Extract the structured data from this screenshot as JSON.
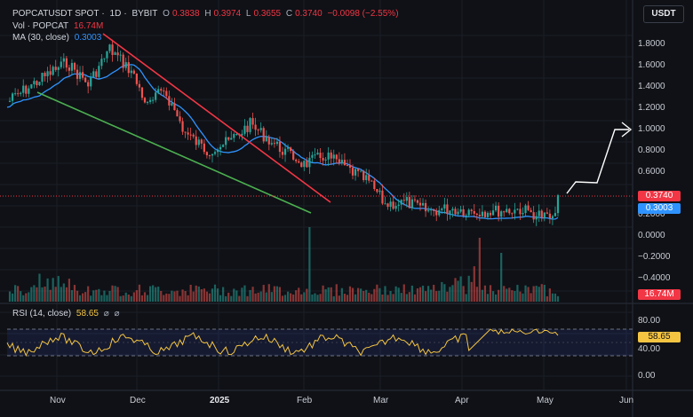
{
  "header": {
    "symbol": "POPCATUSDT SPOT",
    "interval": "1D",
    "exchange": "BYBIT",
    "ohlc": {
      "o_label": "O",
      "o": "0.3838",
      "h_label": "H",
      "h": "0.3974",
      "l_label": "L",
      "l": "0.3655",
      "c_label": "C",
      "c": "0.3740",
      "change": "−0.0098 (−2.55%)"
    },
    "vol_label": "Vol · POPCAT",
    "vol_value": "16.74M",
    "ma_label": "MA (30, close)",
    "ma_value": "0.3003"
  },
  "currency_button": "USDT",
  "price_axis": [
    "1.8000",
    "1.6000",
    "1.4000",
    "1.2000",
    "1.0000",
    "0.8000",
    "0.6000",
    "0.2000",
    "0.0000",
    "−0.2000",
    "−0.4000"
  ],
  "price_tags": {
    "last": "0.3740",
    "ma": "0.3003",
    "volume": "16.74M",
    "rsi": "58.65"
  },
  "rsi": {
    "label": "RSI (14, close)",
    "value": "58.65",
    "axis": [
      "80.00",
      "40.00",
      "0.00"
    ],
    "upper": 70,
    "lower": 30
  },
  "time_axis": [
    "Nov",
    "Dec",
    "2025",
    "Feb",
    "Mar",
    "Apr",
    "May",
    "Jun"
  ],
  "colors": {
    "up": "#26a69a",
    "down": "#ef5350",
    "ma": "#2f93ff",
    "rsi": "#f5c542",
    "resistance": "#f23645",
    "support": "#4caf50",
    "projection": "#ffffff",
    "background": "#0f1116"
  },
  "icons": {
    "eye": "⌀",
    "settings": "⌀"
  }
}
